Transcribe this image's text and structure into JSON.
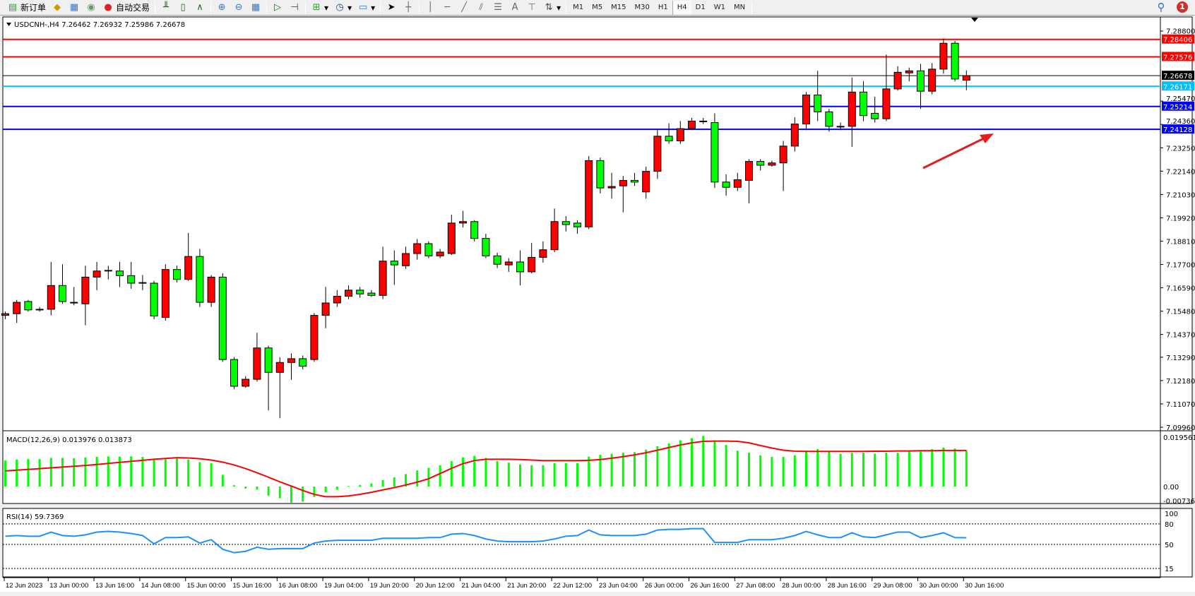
{
  "toolbar": {
    "new_order": "新订单",
    "auto_trading": "自动交易",
    "timeframes": [
      "M1",
      "M5",
      "M15",
      "M30",
      "H1",
      "H4",
      "D1",
      "W1",
      "MN"
    ],
    "active_timeframe": "H4",
    "notification_count": "1"
  },
  "chart": {
    "header": "USDCNH-,H4  7.26462 7.26932 7.25986 7.26678",
    "colors": {
      "bull": "#ff0000",
      "bear": "#00ff00",
      "signal": "#ff0000",
      "histogram": "#00ff00",
      "rsi": "#1e90ff",
      "arrow": "#e02020"
    },
    "price_ticks": [
      "7.28800",
      "7.25470",
      "7.24360",
      "7.23250",
      "7.22140",
      "7.21030",
      "7.19920",
      "7.18810",
      "7.17700",
      "7.16590",
      "7.15480",
      "7.14370",
      "7.13290",
      "7.12180",
      "7.11070",
      "7.09960"
    ],
    "price_range": [
      7.0996,
      7.288
    ],
    "levels": [
      {
        "price": 7.28406,
        "label": "7.28406",
        "color": "#ff0000",
        "text_color": "#ffffff"
      },
      {
        "price": 7.27576,
        "label": "7.27576",
        "color": "#ff0000",
        "text_color": "#ffffff"
      },
      {
        "price": 7.26678,
        "label": "7.26678",
        "color": "#000000",
        "text_color": "#ffffff"
      },
      {
        "price": 7.26171,
        "label": "7.26171",
        "color": "#00bfff",
        "text_color": "#ffffff"
      },
      {
        "price": 7.25214,
        "label": "7.25214",
        "color": "#0000ff",
        "text_color": "#ffffff"
      },
      {
        "price": 7.24128,
        "label": "7.24128",
        "color": "#0000ff",
        "text_color": "#ffffff"
      }
    ],
    "candles": [
      [
        7.1528,
        7.1546,
        7.151,
        7.1536
      ],
      [
        7.1536,
        7.1601,
        7.1492,
        7.159
      ],
      [
        7.1594,
        7.1601,
        7.1546,
        7.1554
      ],
      [
        7.1557,
        7.1568,
        7.1546,
        7.1554
      ],
      [
        7.1557,
        7.1782,
        7.1528,
        7.167
      ],
      [
        7.167,
        7.1771,
        7.1583,
        7.1594
      ],
      [
        7.159,
        7.1663,
        7.1576,
        7.1587
      ],
      [
        7.1583,
        7.1764,
        7.1481,
        7.171
      ],
      [
        7.171,
        7.1782,
        7.1648,
        7.1739
      ],
      [
        7.1739,
        7.1764,
        7.1699,
        7.1742
      ],
      [
        7.1739,
        7.1782,
        7.1663,
        7.1717
      ],
      [
        7.1717,
        7.1782,
        7.1655,
        7.1681
      ],
      [
        7.1684,
        7.172,
        7.1648,
        7.1684
      ],
      [
        7.1681,
        7.1692,
        7.151,
        7.1525
      ],
      [
        7.1518,
        7.1771,
        7.1503,
        7.1746
      ],
      [
        7.1746,
        7.1764,
        7.1684,
        7.1699
      ],
      [
        7.1699,
        7.192,
        7.1692,
        7.1808
      ],
      [
        7.1808,
        7.1844,
        7.1568,
        7.159
      ],
      [
        7.159,
        7.172,
        7.1568,
        7.171
      ],
      [
        7.171,
        7.1728,
        7.1307,
        7.1318
      ],
      [
        7.1318,
        7.1329,
        7.1177,
        7.1191
      ],
      [
        7.1191,
        7.1239,
        7.1184,
        7.1224
      ],
      [
        7.1224,
        7.1445,
        7.1213,
        7.1373
      ],
      [
        7.1373,
        7.1384,
        7.1076,
        7.1257
      ],
      [
        7.1257,
        7.1329,
        7.1039,
        7.1304
      ],
      [
        7.1304,
        7.1347,
        7.1221,
        7.1322
      ],
      [
        7.1322,
        7.1337,
        7.1271,
        7.1286
      ],
      [
        7.1318,
        7.1539,
        7.1307,
        7.1528
      ],
      [
        7.1528,
        7.1663,
        7.1467,
        7.1587
      ],
      [
        7.1587,
        7.1648,
        7.1568,
        7.1619
      ],
      [
        7.1619,
        7.167,
        7.1605,
        7.1648
      ],
      [
        7.1648,
        7.1663,
        7.1612,
        7.163
      ],
      [
        7.1634,
        7.1648,
        7.1616,
        7.1623
      ],
      [
        7.1623,
        7.1855,
        7.1605,
        7.1786
      ],
      [
        7.1786,
        7.1837,
        7.1673,
        7.1768
      ],
      [
        7.1764,
        7.1855,
        7.1749,
        7.1822
      ],
      [
        7.1822,
        7.1891,
        7.1793,
        7.1869
      ],
      [
        7.1869,
        7.188,
        7.18,
        7.1811
      ],
      [
        7.1811,
        7.1844,
        7.18,
        7.1829
      ],
      [
        7.1822,
        7.2007,
        7.1815,
        7.1967
      ],
      [
        7.1967,
        7.2025,
        7.1946,
        7.1974
      ],
      [
        7.1974,
        7.1981,
        7.188,
        7.1894
      ],
      [
        7.1894,
        7.1916,
        7.18,
        7.1811
      ],
      [
        7.1811,
        7.1826,
        7.1753,
        7.1771
      ],
      [
        7.1768,
        7.18,
        7.1735,
        7.1782
      ],
      [
        7.1782,
        7.1837,
        7.167,
        7.1735
      ],
      [
        7.1735,
        7.1873,
        7.1728,
        7.1804
      ],
      [
        7.1804,
        7.188,
        7.1779,
        7.184
      ],
      [
        7.184,
        7.2036,
        7.1829,
        7.1974
      ],
      [
        7.1974,
        7.2,
        7.1927,
        7.196
      ],
      [
        7.1967,
        7.1981,
        7.1916,
        7.1949
      ],
      [
        7.1949,
        7.2286,
        7.1938,
        7.2264
      ],
      [
        7.2264,
        7.2278,
        7.2108,
        7.2134
      ],
      [
        7.2134,
        7.2206,
        7.2083,
        7.2141
      ],
      [
        7.2144,
        7.2191,
        7.2018,
        7.217
      ],
      [
        7.217,
        7.2206,
        7.2144,
        7.2162
      ],
      [
        7.2115,
        7.2235,
        7.2083,
        7.2213
      ],
      [
        7.2213,
        7.2409,
        7.2177,
        7.238
      ],
      [
        7.238,
        7.2441,
        7.2344,
        7.2358
      ],
      [
        7.2358,
        7.2452,
        7.2344,
        7.2416
      ],
      [
        7.2416,
        7.2467,
        7.2409,
        7.2452
      ],
      [
        7.2452,
        7.2467,
        7.2438,
        7.2449
      ],
      [
        7.2445,
        7.2489,
        7.2134,
        7.2162
      ],
      [
        7.2162,
        7.2199,
        7.2097,
        7.2137
      ],
      [
        7.2137,
        7.2206,
        7.2119,
        7.2173
      ],
      [
        7.217,
        7.2271,
        7.2061,
        7.226
      ],
      [
        7.226,
        7.2271,
        7.2217,
        7.2242
      ],
      [
        7.2242,
        7.2264,
        7.2235,
        7.2253
      ],
      [
        7.2253,
        7.2358,
        7.2119,
        7.2333
      ],
      [
        7.2333,
        7.247,
        7.2307,
        7.2438
      ],
      [
        7.2438,
        7.259,
        7.2409,
        7.2576
      ],
      [
        7.2576,
        7.2691,
        7.2452,
        7.2496
      ],
      [
        7.2496,
        7.251,
        7.2402,
        7.2427
      ],
      [
        7.2427,
        7.2445,
        7.2409,
        7.2424
      ],
      [
        7.2427,
        7.2659,
        7.2329,
        7.259
      ],
      [
        7.259,
        7.2641,
        7.2452,
        7.2478
      ],
      [
        7.2489,
        7.2568,
        7.2445,
        7.2463
      ],
      [
        7.2463,
        7.2768,
        7.2452,
        7.2605
      ],
      [
        7.2605,
        7.2713,
        7.2597,
        7.2684
      ],
      [
        7.2681,
        7.2706,
        7.2641,
        7.2691
      ],
      [
        7.2691,
        7.2724,
        7.251,
        7.2594
      ],
      [
        7.2594,
        7.2728,
        7.2579,
        7.2699
      ],
      [
        7.2699,
        7.2844,
        7.2677,
        7.2822
      ],
      [
        7.2822,
        7.2833,
        7.2641,
        7.2652
      ],
      [
        7.26462,
        7.26932,
        7.25986,
        7.26678
      ]
    ],
    "x_labels": [
      "12 Jun 2023",
      "13 Jun 00:00",
      "13 Jun 16:00",
      "14 Jun 08:00",
      "15 Jun 00:00",
      "15 Jun 16:00",
      "16 Jun 08:00",
      "19 Jun 04:00",
      "19 Jun 20:00",
      "20 Jun 12:00",
      "21 Jun 04:00",
      "21 Jun 20:00",
      "22 Jun 12:00",
      "23 Jun 04:00",
      "26 Jun 00:00",
      "26 Jun 16:00",
      "27 Jun 08:00",
      "28 Jun 00:00",
      "28 Jun 16:00",
      "29 Jun 08:00",
      "30 Jun 00:00",
      "30 Jun 16:00"
    ]
  },
  "macd": {
    "label": "MACD(12,26,9) 0.013976 0.013873",
    "ticks": [
      "0.019561",
      "0.00",
      "-0.007367"
    ],
    "range": [
      -0.007367,
      0.019561
    ],
    "histogram": [
      0.01,
      0.0104,
      0.0106,
      0.0106,
      0.011,
      0.011,
      0.0109,
      0.0112,
      0.0114,
      0.0116,
      0.0115,
      0.0116,
      0.0114,
      0.0108,
      0.011,
      0.0108,
      0.0104,
      0.0094,
      0.009,
      0.0045,
      0.0005,
      -0.0008,
      -0.0012,
      -0.0035,
      -0.0045,
      -0.0062,
      -0.0058,
      -0.004,
      -0.0022,
      -0.0012,
      0.0002,
      0.0006,
      0.0012,
      0.0025,
      0.0035,
      0.0048,
      0.0062,
      0.0072,
      0.0082,
      0.0098,
      0.0112,
      0.0118,
      0.011,
      0.0098,
      0.0092,
      0.0085,
      0.0082,
      0.0082,
      0.009,
      0.009,
      0.009,
      0.0115,
      0.0122,
      0.0126,
      0.013,
      0.0132,
      0.0142,
      0.0155,
      0.0166,
      0.0178,
      0.0186,
      0.0195,
      0.0178,
      0.016,
      0.0138,
      0.013,
      0.012,
      0.0114,
      0.0114,
      0.012,
      0.0134,
      0.0144,
      0.0135,
      0.0126,
      0.013,
      0.013,
      0.0126,
      0.013,
      0.013,
      0.0135,
      0.0135,
      0.0144,
      0.015,
      0.0146,
      0.013976
    ],
    "signal": [
      0.006,
      0.0063,
      0.0066,
      0.0069,
      0.0072,
      0.0075,
      0.0078,
      0.0081,
      0.0085,
      0.0089,
      0.0093,
      0.0097,
      0.0101,
      0.0105,
      0.0108,
      0.0111,
      0.011,
      0.0107,
      0.0102,
      0.0094,
      0.0083,
      0.0069,
      0.0053,
      0.0036,
      0.0018,
      0.0002,
      -0.0015,
      -0.003,
      -0.0039,
      -0.0039,
      -0.0036,
      -0.003,
      -0.0022,
      -0.0013,
      -0.0004,
      0.0006,
      0.0017,
      0.003,
      0.005,
      0.007,
      0.0088,
      0.01,
      0.0105,
      0.0105,
      0.0105,
      0.0104,
      0.0102,
      0.01,
      0.01,
      0.01,
      0.01,
      0.0101,
      0.0104,
      0.0109,
      0.0115,
      0.0122,
      0.013,
      0.014,
      0.015,
      0.016,
      0.0168,
      0.0174,
      0.0175,
      0.0175,
      0.0174,
      0.0168,
      0.0158,
      0.0148,
      0.014,
      0.0136,
      0.0135,
      0.0135,
      0.0135,
      0.0135,
      0.0135,
      0.0135,
      0.0136,
      0.0136,
      0.0137,
      0.0137,
      0.0138,
      0.0138,
      0.0139,
      0.0139,
      0.013873
    ]
  },
  "rsi": {
    "label": "RSI(14) 59.7369",
    "ticks": [
      "100",
      "80",
      "50",
      "15"
    ],
    "levels": [
      80,
      50,
      15
    ],
    "values": [
      62,
      63,
      62,
      62,
      68,
      63,
      62,
      64,
      68,
      69,
      68,
      66,
      63,
      51,
      60,
      60,
      61,
      52,
      57,
      43,
      38,
      40,
      46,
      43,
      44,
      44,
      44,
      52,
      55,
      56,
      56,
      56,
      56,
      59,
      59,
      59,
      59,
      60,
      60,
      65,
      66,
      63,
      58,
      55,
      54,
      54,
      54,
      55,
      58,
      62,
      63,
      71,
      64,
      63,
      63,
      63,
      65,
      71,
      72,
      72,
      73,
      73,
      53,
      53,
      53,
      57,
      57,
      57,
      59,
      63,
      69,
      64,
      60,
      60,
      67,
      61,
      60,
      64,
      68,
      68,
      60,
      63,
      67,
      60,
      59.7369
    ]
  }
}
